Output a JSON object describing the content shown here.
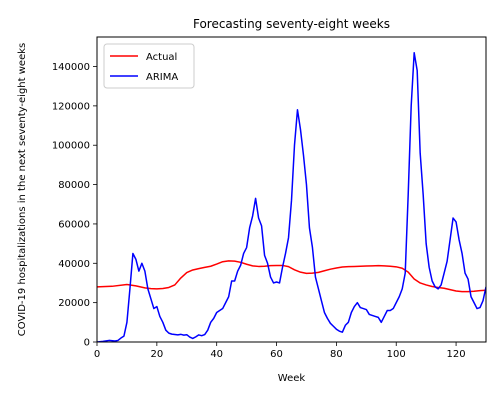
{
  "chart_data": {
    "type": "line",
    "title": "Forecasting seventy-eight weeks",
    "xlabel": "Week",
    "ylabel": "COVID-19 hospitalizations in the next seventy-eight weeks",
    "xlim": [
      0,
      130
    ],
    "ylim": [
      0,
      155000
    ],
    "xticks": [
      0,
      20,
      40,
      60,
      80,
      100,
      120
    ],
    "yticks": [
      0,
      20000,
      40000,
      60000,
      80000,
      100000,
      120000,
      140000
    ],
    "legend_position": "top-left",
    "grid": false,
    "series": [
      {
        "name": "Actual",
        "color": "#ff0000",
        "x": [
          0,
          5,
          10,
          13,
          16,
          18,
          20,
          22,
          24,
          26,
          28,
          30,
          32,
          34,
          36,
          38,
          40,
          42,
          44,
          46,
          48,
          50,
          52,
          54,
          56,
          58,
          60,
          62,
          64,
          66,
          68,
          70,
          72,
          74,
          76,
          78,
          80,
          82,
          84,
          86,
          88,
          90,
          92,
          94,
          96,
          98,
          100,
          102,
          104,
          106,
          108,
          110,
          112,
          114,
          116,
          118,
          120,
          122,
          124,
          126,
          128,
          130
        ],
        "y": [
          28000,
          28300,
          29200,
          28500,
          27500,
          27100,
          27000,
          27200,
          27700,
          29000,
          32500,
          35300,
          36600,
          37300,
          37900,
          38500,
          39600,
          40800,
          41200,
          41100,
          40500,
          39500,
          38700,
          38400,
          38500,
          38800,
          38900,
          38900,
          38300,
          36700,
          35500,
          34900,
          35000,
          35400,
          36200,
          37000,
          37600,
          38100,
          38300,
          38400,
          38500,
          38600,
          38700,
          38800,
          38700,
          38500,
          38200,
          37500,
          35500,
          32000,
          30000,
          29000,
          28200,
          27700,
          27300,
          26600,
          25900,
          25600,
          25600,
          25800,
          26100,
          26300
        ]
      },
      {
        "name": "ARIMA",
        "color": "#0000ff",
        "x": [
          0,
          2,
          4,
          6,
          7,
          8,
          9,
          10,
          11,
          12,
          13,
          14,
          15,
          16,
          17,
          18,
          19,
          20,
          21,
          22,
          23,
          24,
          25,
          26,
          27,
          28,
          29,
          30,
          31,
          32,
          33,
          34,
          35,
          36,
          37,
          38,
          39,
          40,
          41,
          42,
          43,
          44,
          45,
          46,
          47,
          48,
          49,
          50,
          51,
          52,
          53,
          54,
          55,
          56,
          57,
          58,
          59,
          60,
          61,
          62,
          63,
          64,
          65,
          66,
          67,
          68,
          69,
          70,
          71,
          72,
          73,
          74,
          75,
          76,
          77,
          78,
          79,
          80,
          81,
          82,
          83,
          84,
          85,
          86,
          87,
          88,
          89,
          90,
          91,
          92,
          93,
          94,
          95,
          96,
          97,
          98,
          99,
          100,
          101,
          102,
          103,
          104,
          105,
          106,
          107,
          108,
          109,
          110,
          111,
          112,
          113,
          114,
          115,
          116,
          117,
          118,
          119,
          120,
          121,
          122,
          123,
          124,
          125,
          126,
          127,
          128,
          129,
          130
        ],
        "y": [
          0,
          300,
          800,
          500,
          800,
          2000,
          3000,
          10000,
          27000,
          45000,
          42000,
          36000,
          40000,
          36000,
          27000,
          22000,
          17000,
          18000,
          13000,
          10000,
          6000,
          4500,
          4000,
          3800,
          3600,
          3900,
          3500,
          3700,
          2500,
          1800,
          2600,
          3600,
          3200,
          3800,
          6000,
          10000,
          12000,
          15000,
          16000,
          17000,
          20000,
          23000,
          31000,
          31000,
          36000,
          39000,
          45000,
          48000,
          58000,
          64000,
          73000,
          63000,
          59000,
          44000,
          40000,
          33000,
          30000,
          30500,
          30000,
          38000,
          45000,
          53000,
          72000,
          100000,
          118000,
          108000,
          95000,
          80000,
          58000,
          48000,
          33000,
          27000,
          21000,
          15000,
          12000,
          9500,
          8000,
          6500,
          5500,
          5000,
          8500,
          10000,
          15000,
          18000,
          20000,
          17500,
          17000,
          16500,
          14000,
          13500,
          13000,
          12500,
          10000,
          13000,
          16000,
          16000,
          17000,
          20000,
          23000,
          27000,
          35000,
          75000,
          120000,
          147000,
          138000,
          96000,
          75000,
          50000,
          38000,
          31000,
          28000,
          27000,
          29000,
          35000,
          41000,
          52000,
          63000,
          61000,
          52000,
          45000,
          35000,
          32000,
          23000,
          20000,
          17000,
          17500,
          21000,
          28000
        ]
      }
    ]
  }
}
